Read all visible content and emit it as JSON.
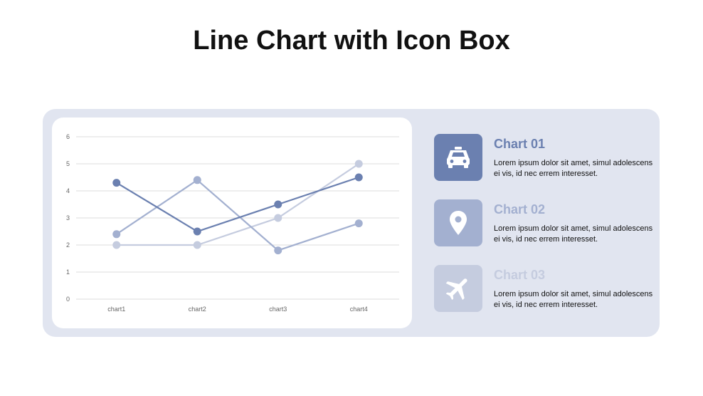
{
  "title": "Line Chart with Icon Box",
  "colors": {
    "panel_bg": "#e1e5f0",
    "series1": "#6b80b0",
    "series2": "#a3b0d0",
    "series3": "#c5ccdf"
  },
  "chart_data": {
    "type": "line",
    "categories": [
      "chart1",
      "chart2",
      "chart3",
      "chart4"
    ],
    "series": [
      {
        "values": [
          4.3,
          2.5,
          3.5,
          4.5
        ],
        "color": "#6b80b0"
      },
      {
        "values": [
          2.4,
          4.4,
          1.8,
          2.8
        ],
        "color": "#a3b0d0"
      },
      {
        "values": [
          2.0,
          2.0,
          3.0,
          5.0
        ],
        "color": "#c5ccdf"
      }
    ],
    "ylim": [
      0,
      6
    ],
    "yticks": [
      "0",
      "1",
      "2",
      "3",
      "4",
      "5",
      "6"
    ],
    "grid": true,
    "legend": "none"
  },
  "items": [
    {
      "title": "Chart 01",
      "text": "Lorem ipsum dolor sit amet, simul adolescens ei vis, id nec errem interesset.",
      "icon": "taxi-icon",
      "color": "#6b80b0"
    },
    {
      "title": "Chart 02",
      "text": "Lorem ipsum dolor sit amet, simul adolescens ei vis, id nec errem interesset.",
      "icon": "location-pin-icon",
      "color": "#a3b0d0"
    },
    {
      "title": "Chart 03",
      "text": "Lorem ipsum dolor sit amet, simul adolescens ei vis, id nec errem interesset.",
      "icon": "airplane-icon",
      "color": "#c5ccdf"
    }
  ]
}
